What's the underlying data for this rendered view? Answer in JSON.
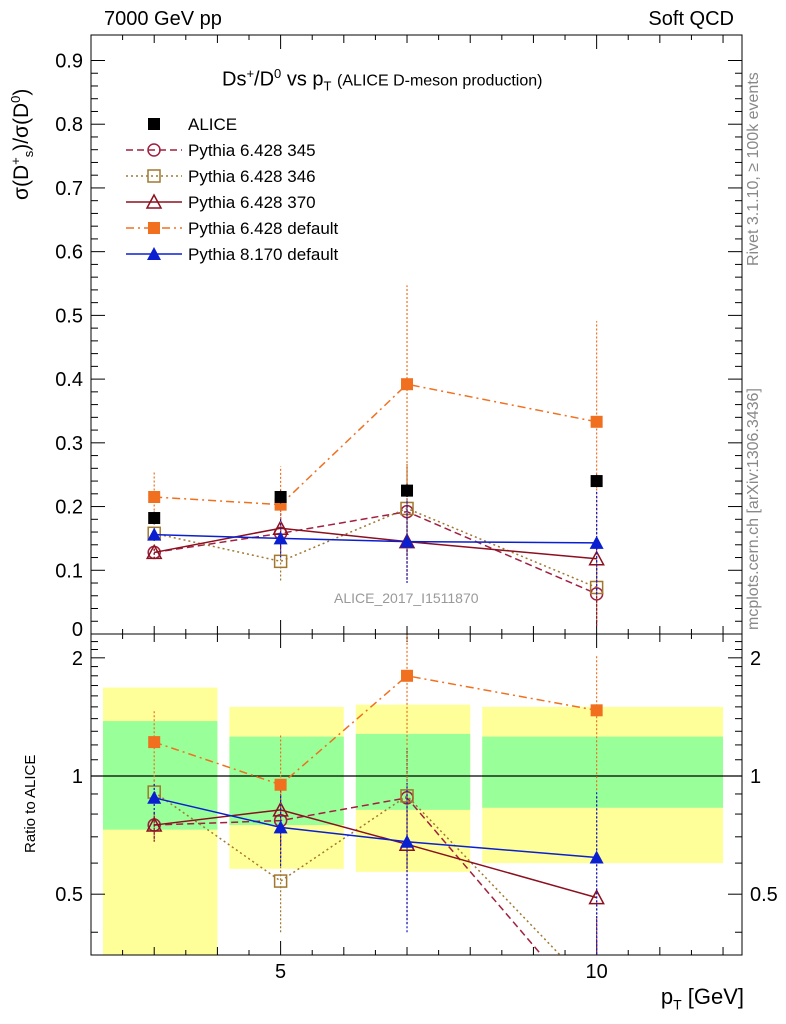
{
  "header": {
    "left": "7000 GeV pp",
    "right": "Soft QCD",
    "title_main": "Ds",
    "title_rest": "/D",
    "title_vs": " vs p",
    "title_sub": "T",
    "title_desc": "(ALICE D-meson production)"
  },
  "side_labels": {
    "rivet": "Rivet 3.1.10, ≥ 100k events",
    "mcplots": "mcplots.cern.ch [arXiv:1306.3436]"
  },
  "watermark": "ALICE_2017_I1511870",
  "axes": {
    "ylabel_top_pre": "σ(D",
    "ylabel_top_mid": ")/σ(D",
    "ylabel_top_post": ")",
    "ylabel_bottom": "Ratio to ALICE",
    "xlabel_main": "p",
    "xlabel_sub": "T",
    "xlabel_unit": " [GeV]"
  },
  "chart_data": {
    "type": "scatter",
    "x_range": [
      2,
      12.3
    ],
    "top": {
      "ylim": [
        0,
        0.94
      ],
      "yticks": [
        0,
        0.1,
        0.2,
        0.3,
        0.4,
        0.5,
        0.6,
        0.7,
        0.8,
        0.9
      ],
      "ytick_labels": [
        "0",
        "0.1",
        "0.2",
        "0.3",
        "0.4",
        "0.5",
        "0.6",
        "0.7",
        "0.8",
        "0.9"
      ]
    },
    "bottom": {
      "ylim": [
        0.35,
        2.3
      ],
      "ylog": true,
      "yticks": [
        0.5,
        1,
        2
      ],
      "ytick_labels": [
        "0.5",
        "1",
        "2"
      ]
    },
    "xticks": [
      5,
      10
    ],
    "xtick_labels": [
      "5",
      "10"
    ],
    "ref_bands": [
      {
        "x0": 2,
        "x1": 4,
        "inner": [
          0.73,
          1.38
        ],
        "outer": [
          0.2,
          1.68
        ]
      },
      {
        "x0": 4,
        "x1": 6,
        "inner": [
          0.75,
          1.26
        ],
        "outer": [
          0.58,
          1.5
        ]
      },
      {
        "x0": 6,
        "x1": 8,
        "inner": [
          0.82,
          1.28
        ],
        "outer": [
          0.57,
          1.52
        ]
      },
      {
        "x0": 8,
        "x1": 12,
        "inner": [
          0.83,
          1.26
        ],
        "outer": [
          0.6,
          1.5
        ]
      }
    ],
    "series": [
      {
        "name": "ALICE",
        "color": "#000000",
        "marker": "square-filled",
        "line": "none",
        "x": [
          3,
          5,
          7,
          10
        ],
        "y": [
          0.182,
          0.215,
          0.225,
          0.24
        ],
        "yerr_lo": [
          0.01,
          0.01,
          0.01,
          0.01
        ],
        "yerr_hi": [
          0.01,
          0.01,
          0.01,
          0.01
        ],
        "ratio": [
          1,
          1,
          1,
          1
        ],
        "ratio_err": [
          0,
          0,
          0,
          0
        ]
      },
      {
        "name": "Pythia 6.428 345",
        "color": "#a02040",
        "marker": "circle-open",
        "line": "dashed",
        "x": [
          3,
          5,
          7,
          10
        ],
        "y": [
          0.128,
          0.158,
          0.192,
          0.063
        ],
        "yerr_lo": [
          0.01,
          0.035,
          0.07,
          0.05
        ],
        "yerr_hi": [
          0.01,
          0.035,
          0.07,
          0.05
        ],
        "ratio": [
          0.75,
          0.77,
          0.88,
          0.24
        ],
        "ratio_err": [
          0.06,
          0.15,
          0.3,
          0.2
        ]
      },
      {
        "name": "Pythia 6.428 346",
        "color": "#a07830",
        "marker": "square-open",
        "line": "dotted",
        "x": [
          3,
          5,
          7,
          10
        ],
        "y": [
          0.158,
          0.114,
          0.197,
          0.073
        ],
        "yerr_lo": [
          0.01,
          0.03,
          0.07,
          0.05
        ],
        "yerr_hi": [
          0.01,
          0.03,
          0.07,
          0.05
        ],
        "ratio": [
          0.91,
          0.54,
          0.89,
          0.28
        ],
        "ratio_err": [
          0.07,
          0.14,
          0.3,
          0.2
        ]
      },
      {
        "name": "Pythia 6.428 370",
        "color": "#8b1020",
        "marker": "triangle-open",
        "line": "solid",
        "x": [
          3,
          5,
          7,
          10
        ],
        "y": [
          0.128,
          0.166,
          0.145,
          0.118
        ],
        "yerr_lo": [
          0.01,
          0.03,
          0.06,
          0.1
        ],
        "yerr_hi": [
          0.01,
          0.03,
          0.06,
          0.1
        ],
        "ratio": [
          0.75,
          0.82,
          0.67,
          0.49
        ],
        "ratio_err": [
          0.07,
          0.15,
          0.25,
          0.4
        ]
      },
      {
        "name": "Pythia 6.428 default",
        "color": "#f07020",
        "marker": "square-filled",
        "line": "dashdot",
        "x": [
          3,
          5,
          7,
          10
        ],
        "y": [
          0.215,
          0.203,
          0.392,
          0.333
        ],
        "yerr_lo": [
          0.04,
          0.06,
          0.155,
          0.158
        ],
        "yerr_hi": [
          0.04,
          0.06,
          0.155,
          0.158
        ],
        "ratio": [
          1.22,
          0.95,
          1.8,
          1.47
        ],
        "ratio_err": [
          0.25,
          0.33,
          0.6,
          0.55
        ]
      },
      {
        "name": "Pythia 8.170 default",
        "color": "#0a20d0",
        "marker": "triangle-filled",
        "line": "solid",
        "x": [
          3,
          5,
          7,
          10
        ],
        "y": [
          0.156,
          0.15,
          0.145,
          0.143
        ],
        "yerr_lo": [
          0.01,
          0.03,
          0.065,
          0.08
        ],
        "yerr_hi": [
          0.01,
          0.03,
          0.065,
          0.08
        ],
        "ratio": [
          0.88,
          0.74,
          0.68,
          0.62
        ],
        "ratio_err": [
          0.08,
          0.15,
          0.28,
          0.3
        ]
      }
    ],
    "colors": {
      "band_inner": "#99ff99",
      "band_outer": "#ffff99",
      "ref_line": "#000000"
    }
  }
}
